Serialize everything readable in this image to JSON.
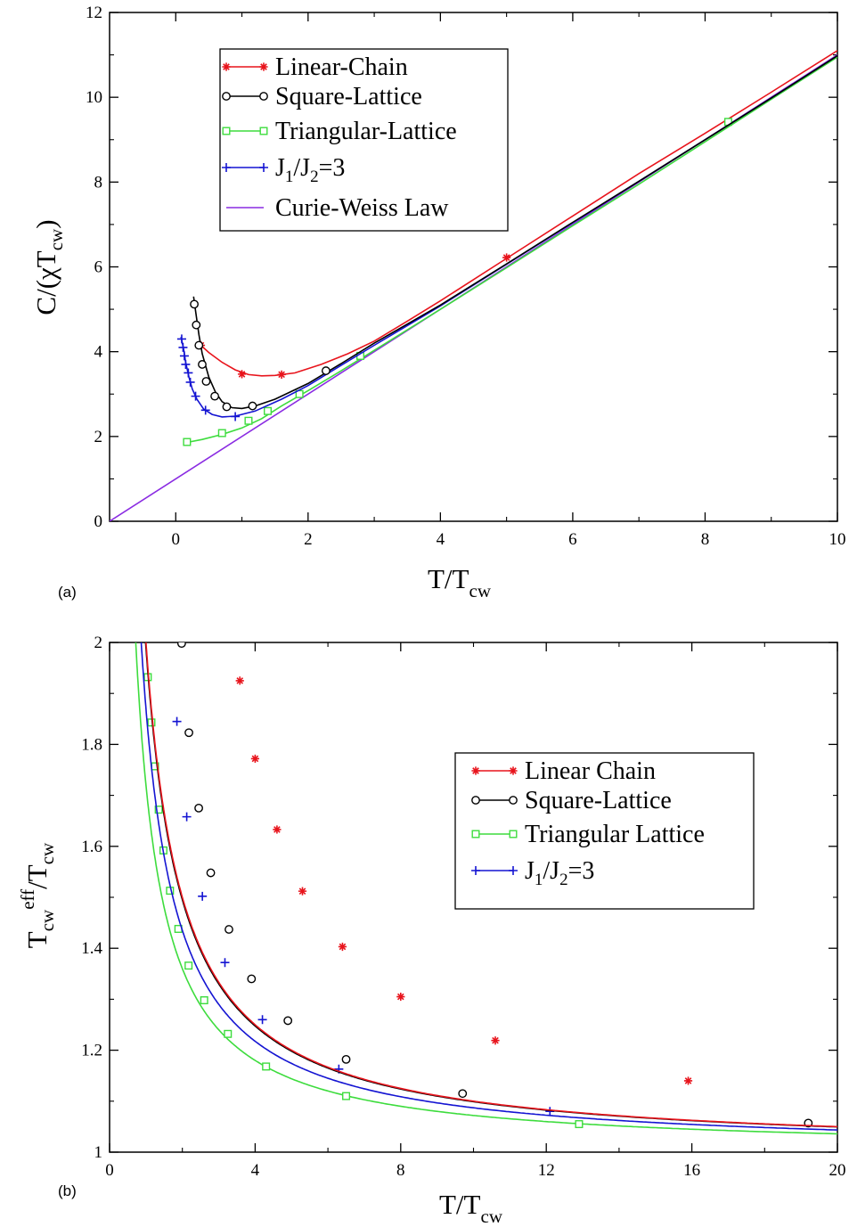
{
  "colors": {
    "linear_chain": "#e8141c",
    "square_lattice": "#000000",
    "triangular_lattice": "#3ddc3d",
    "j1j2": "#1414d2",
    "curie_weiss": "#8a2be2"
  },
  "chart_data": [
    {
      "panel": "(a)",
      "type": "line",
      "xlim": [
        -1,
        10
      ],
      "ylim": [
        0,
        12
      ],
      "x_ticks": [
        0,
        2,
        4,
        6,
        8,
        10
      ],
      "y_ticks": [
        0,
        2,
        4,
        6,
        8,
        10,
        12
      ],
      "x_tick_labels": [
        "0",
        "2",
        "4",
        "6",
        "8",
        "10"
      ],
      "y_tick_labels": [
        "0",
        "2",
        "4",
        "6",
        "8",
        "10",
        "12"
      ],
      "xlabel": {
        "main": "T/T",
        "sub": "cw"
      },
      "ylabel": {
        "pre": "C/(χT",
        "sub": "cw",
        "post": ")"
      },
      "legend_position": "upper-left",
      "series": [
        {
          "name": "Linear-Chain",
          "key": "linear_chain",
          "marker": "star",
          "line": [
            [
              0.38,
              4.15
            ],
            [
              0.5,
              3.98
            ],
            [
              0.7,
              3.75
            ],
            [
              0.9,
              3.57
            ],
            [
              1.1,
              3.46
            ],
            [
              1.3,
              3.43
            ],
            [
              1.5,
              3.44
            ],
            [
              1.8,
              3.5
            ],
            [
              2.2,
              3.7
            ],
            [
              2.6,
              3.95
            ],
            [
              3.0,
              4.25
            ],
            [
              3.5,
              4.72
            ],
            [
              4.0,
              5.2
            ],
            [
              5.0,
              6.2
            ],
            [
              6.0,
              7.2
            ],
            [
              7.0,
              8.2
            ],
            [
              8.0,
              9.15
            ],
            [
              9.0,
              10.12
            ],
            [
              10.0,
              11.1
            ]
          ],
          "markers": [
            [
              0.38,
              4.15
            ],
            [
              1.0,
              3.47
            ],
            [
              1.6,
              3.46
            ],
            [
              5.0,
              6.22
            ]
          ]
        },
        {
          "name": "Square-Lattice",
          "key": "square_lattice",
          "marker": "circle",
          "line": [
            [
              0.27,
              5.3
            ],
            [
              0.3,
              4.95
            ],
            [
              0.35,
              4.4
            ],
            [
              0.4,
              3.95
            ],
            [
              0.5,
              3.4
            ],
            [
              0.6,
              3.05
            ],
            [
              0.7,
              2.82
            ],
            [
              0.85,
              2.68
            ],
            [
              1.0,
              2.66
            ],
            [
              1.2,
              2.72
            ],
            [
              1.5,
              2.88
            ],
            [
              2.0,
              3.25
            ],
            [
              2.5,
              3.72
            ],
            [
              3.0,
              4.2
            ],
            [
              4.0,
              5.1
            ],
            [
              5.0,
              6.07
            ],
            [
              6.0,
              7.05
            ],
            [
              7.0,
              8.02
            ],
            [
              8.0,
              9.0
            ],
            [
              9.0,
              9.98
            ],
            [
              10.0,
              10.98
            ]
          ],
          "markers": [
            [
              0.28,
              5.12
            ],
            [
              0.31,
              4.63
            ],
            [
              0.35,
              4.15
            ],
            [
              0.4,
              3.7
            ],
            [
              0.46,
              3.3
            ],
            [
              0.59,
              2.95
            ],
            [
              0.77,
              2.7
            ],
            [
              1.16,
              2.72
            ],
            [
              2.27,
              3.55
            ]
          ]
        },
        {
          "name": "Triangular-Lattice",
          "key": "triangular_lattice",
          "marker": "square",
          "line": [
            [
              0.17,
              1.86
            ],
            [
              0.4,
              1.93
            ],
            [
              0.7,
              2.05
            ],
            [
              1.0,
              2.2
            ],
            [
              1.3,
              2.42
            ],
            [
              1.6,
              2.72
            ],
            [
              2.0,
              3.08
            ],
            [
              2.5,
              3.55
            ],
            [
              3.0,
              4.03
            ],
            [
              4.0,
              5.0
            ],
            [
              5.0,
              5.98
            ],
            [
              6.0,
              6.97
            ],
            [
              7.0,
              7.95
            ],
            [
              8.0,
              8.95
            ],
            [
              9.0,
              9.95
            ],
            [
              10.0,
              10.95
            ]
          ],
          "markers": [
            [
              0.17,
              1.87
            ],
            [
              0.7,
              2.08
            ],
            [
              1.1,
              2.37
            ],
            [
              1.39,
              2.6
            ],
            [
              1.87,
              3.0
            ],
            [
              2.79,
              3.9
            ],
            [
              8.35,
              9.42
            ]
          ]
        },
        {
          "name": "J1/J2=3",
          "key": "j1j2",
          "marker": "plus",
          "line": [
            [
              0.08,
              4.35
            ],
            [
              0.12,
              4.05
            ],
            [
              0.15,
              3.75
            ],
            [
              0.2,
              3.4
            ],
            [
              0.25,
              3.12
            ],
            [
              0.32,
              2.88
            ],
            [
              0.42,
              2.65
            ],
            [
              0.55,
              2.52
            ],
            [
              0.7,
              2.46
            ],
            [
              0.9,
              2.48
            ],
            [
              1.2,
              2.6
            ],
            [
              1.6,
              2.88
            ],
            [
              2.0,
              3.2
            ],
            [
              2.5,
              3.68
            ],
            [
              3.0,
              4.15
            ],
            [
              4.0,
              5.08
            ],
            [
              5.0,
              6.06
            ],
            [
              6.0,
              7.04
            ],
            [
              7.0,
              8.02
            ],
            [
              8.0,
              9.0
            ],
            [
              9.0,
              9.98
            ],
            [
              10.0,
              10.98
            ]
          ],
          "markers": [
            [
              0.09,
              4.3
            ],
            [
              0.11,
              4.1
            ],
            [
              0.13,
              3.9
            ],
            [
              0.15,
              3.7
            ],
            [
              0.19,
              3.5
            ],
            [
              0.22,
              3.28
            ],
            [
              0.3,
              2.95
            ],
            [
              0.45,
              2.62
            ],
            [
              0.9,
              2.47
            ]
          ]
        },
        {
          "name": "Curie-Weiss Law",
          "key": "curie_weiss",
          "marker": "none",
          "line": [
            [
              -1,
              0
            ],
            [
              10,
              11
            ]
          ],
          "markers": []
        }
      ]
    },
    {
      "panel": "(b)",
      "type": "line",
      "xlim": [
        0,
        20
      ],
      "ylim": [
        1,
        2
      ],
      "x_ticks": [
        0,
        4,
        8,
        12,
        16,
        20
      ],
      "y_ticks": [
        1,
        1.2,
        1.4,
        1.6,
        1.8,
        2
      ],
      "x_tick_labels": [
        "0",
        "4",
        "8",
        "12",
        "16",
        "20"
      ],
      "y_tick_labels": [
        "1",
        "1.2",
        "1.4",
        "1.6",
        "1.8",
        "2"
      ],
      "xlabel": {
        "main": "T/T",
        "sub": "cw"
      },
      "ylabel": {
        "pre": "T",
        "sub": "cw",
        "sup": "eff",
        "post": "/T",
        "sub2": "cw"
      },
      "legend_position": "right",
      "series": [
        {
          "name": "Linear Chain",
          "key": "linear_chain",
          "marker": "star",
          "c": 1.0,
          "p": 1.0,
          "markers": [
            [
              3.58,
              1.925
            ],
            [
              4.0,
              1.772
            ],
            [
              4.6,
              1.633
            ],
            [
              5.3,
              1.512
            ],
            [
              6.4,
              1.403
            ],
            [
              8.0,
              1.305
            ],
            [
              10.6,
              1.219
            ],
            [
              15.9,
              1.14
            ]
          ]
        },
        {
          "name": "Square-Lattice",
          "key": "square_lattice",
          "marker": "circle",
          "c": 0.99,
          "p": 1.0,
          "markers": [
            [
              1.98,
              1.998
            ],
            [
              2.18,
              1.823
            ],
            [
              2.45,
              1.675
            ],
            [
              2.78,
              1.548
            ],
            [
              3.28,
              1.437
            ],
            [
              3.9,
              1.34
            ],
            [
              4.9,
              1.258
            ],
            [
              6.5,
              1.182
            ],
            [
              9.7,
              1.115
            ],
            [
              19.2,
              1.057
            ]
          ]
        },
        {
          "name": "Triangular Lattice",
          "key": "triangular_lattice",
          "marker": "square",
          "c": 0.72,
          "p": 1.0,
          "markers": [
            [
              1.05,
              1.932
            ],
            [
              1.15,
              1.843
            ],
            [
              1.25,
              1.757
            ],
            [
              1.35,
              1.672
            ],
            [
              1.48,
              1.592
            ],
            [
              1.66,
              1.513
            ],
            [
              1.89,
              1.438
            ],
            [
              2.17,
              1.366
            ],
            [
              2.6,
              1.298
            ],
            [
              3.25,
              1.232
            ],
            [
              4.3,
              1.168
            ],
            [
              6.5,
              1.11
            ],
            [
              12.9,
              1.055
            ]
          ]
        },
        {
          "name": "J1/J2=3",
          "key": "j1j2",
          "marker": "plus",
          "c": 0.87,
          "p": 1.0,
          "markers": [
            [
              1.85,
              1.845
            ],
            [
              2.12,
              1.658
            ],
            [
              2.55,
              1.502
            ],
            [
              3.17,
              1.372
            ],
            [
              4.2,
              1.26
            ],
            [
              6.3,
              1.163
            ],
            [
              12.1,
              1.08
            ]
          ]
        }
      ]
    }
  ],
  "legend_a": [
    {
      "key": "linear_chain",
      "marker": "star",
      "label": "Linear-Chain"
    },
    {
      "key": "square_lattice",
      "marker": "circle",
      "label": "Square-Lattice"
    },
    {
      "key": "triangular_lattice",
      "marker": "square",
      "label": "Triangular-Lattice"
    },
    {
      "key": "j1j2",
      "marker": "plus",
      "label_parts": [
        "J",
        "1",
        "/J",
        "2",
        "=3"
      ]
    },
    {
      "key": "curie_weiss",
      "marker": "none",
      "label": "Curie-Weiss Law"
    }
  ],
  "legend_b": [
    {
      "key": "linear_chain",
      "marker": "star",
      "label": "Linear Chain"
    },
    {
      "key": "square_lattice",
      "marker": "circle",
      "label": "Square-Lattice"
    },
    {
      "key": "triangular_lattice",
      "marker": "square",
      "label": "Triangular Lattice"
    },
    {
      "key": "j1j2",
      "marker": "plus",
      "label_parts": [
        "J",
        "1",
        "/J",
        "2",
        "=3"
      ]
    }
  ]
}
